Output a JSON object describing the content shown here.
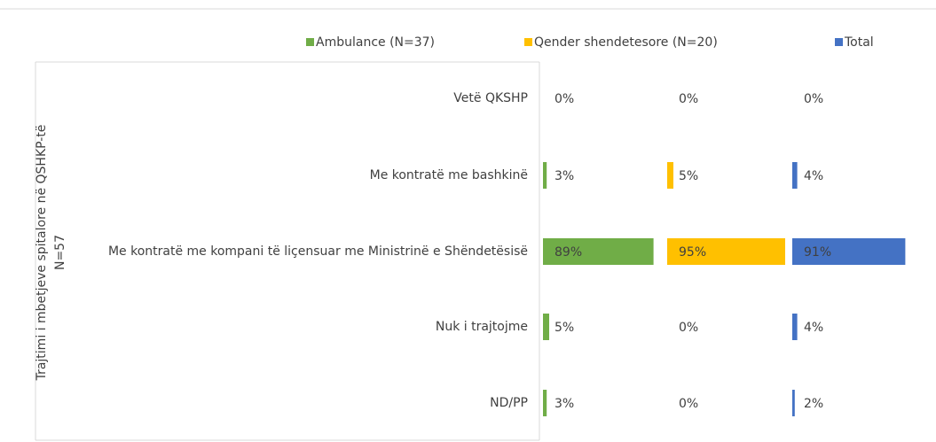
{
  "chart_data": {
    "type": "bar",
    "y_group_label": [
      "Trajtimi i mbetjeve spitalore në QSHKP-të",
      "N=57"
    ],
    "categories": [
      "Vetë QKSHP",
      "Me kontratë me bashkinë",
      "Me kontratë me kompani të liçensuar me Ministrinë e Shëndetësisë",
      "Nuk i trajtojme",
      "ND/PP"
    ],
    "xlim": [
      0,
      100
    ],
    "series": [
      {
        "name": "Ambulance (N=37)",
        "color": "#70ad47",
        "values": [
          0,
          3,
          89,
          5,
          3
        ],
        "value_labels": [
          "0%",
          "3%",
          "89%",
          "5%",
          "3%"
        ]
      },
      {
        "name": "Qender shendetesore (N=20)",
        "color": "#ffc000",
        "values": [
          0,
          5,
          95,
          0,
          0
        ],
        "value_labels": [
          "0%",
          "5%",
          "95%",
          "0%",
          "0%"
        ]
      },
      {
        "name": "Total",
        "color": "#4472c4",
        "values": [
          0,
          4,
          91,
          4,
          2
        ],
        "value_labels": [
          "0%",
          "4%",
          "91%",
          "4%",
          "2%"
        ]
      }
    ]
  }
}
